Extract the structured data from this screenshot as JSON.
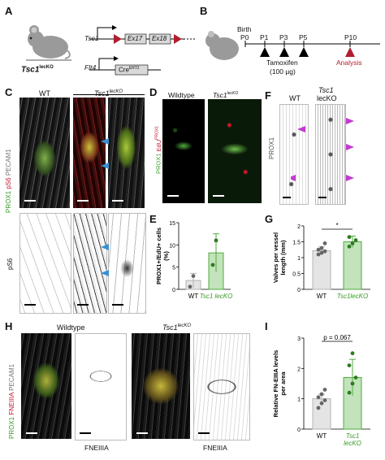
{
  "panels": {
    "A": {
      "label": "A",
      "mouse_label": "Tsc1",
      "mouse_sup": "lecKO",
      "gene1": "Tsc1",
      "ex1": "Ex17",
      "ex2": "Ex18",
      "gene2": "Flt4",
      "cre": "Cre",
      "cre_sup": "ERT2"
    },
    "B": {
      "label": "B",
      "birth": "Birth",
      "ticks": [
        "P0",
        "P1",
        "P3",
        "P5",
        "P10"
      ],
      "drug": "Tamoxifen",
      "dose": "(100 µg)",
      "analysis": "Analysis"
    },
    "C": {
      "label": "C",
      "wt": "WT",
      "ko": "Tsc1",
      "ko_sup": "lecKO",
      "stain_green": "PROX1",
      "stain_red": "pS6",
      "stain_white": "PECAM1",
      "bottom_stain": "pS6"
    },
    "D": {
      "label": "D",
      "wt": "Wildtype",
      "ko": "Tsc1",
      "ko_sup": "lecKO",
      "stain_green": "PROX1",
      "stain_red": "EdU",
      "stain_red_sup": "PROX1"
    },
    "E": {
      "label": "E"
    },
    "F": {
      "label": "F",
      "wt": "WT",
      "ko_line1": "Tsc1",
      "ko_line2": "lecKO",
      "stain": "PROX1"
    },
    "G": {
      "label": "G"
    },
    "H": {
      "label": "H",
      "wt": "Wildtype",
      "ko": "Tsc1",
      "ko_sup": "lecKO",
      "stain_green": "PROX1",
      "stain_red": "FNEIIIA",
      "stain_white": "PECAM1",
      "bottom_wt": "FNEIIIA",
      "bottom_ko": "FNEIIIA"
    },
    "I": {
      "label": "I"
    }
  },
  "chart_data": [
    {
      "id": "E",
      "type": "bar",
      "ylabel": "PROX1+/EdU+ cells (%)",
      "ylim": [
        0,
        15
      ],
      "yticks": [
        0,
        5,
        10,
        15
      ],
      "categories": [
        "WT",
        "Tsc1 lecKO"
      ],
      "category_sup": [
        "",
        ""
      ],
      "values": [
        2.0,
        8.2
      ],
      "errors": [
        1.6,
        4.3
      ],
      "points": [
        [
          0.6,
          3.0
        ],
        [
          5.5,
          11.0
        ]
      ],
      "colors": [
        "#b3b3b3",
        "#4fae3c"
      ]
    },
    {
      "id": "G",
      "type": "bar",
      "ylabel": "Valves per vessel length (mm)",
      "ylim": [
        0,
        2.0
      ],
      "yticks": [
        0,
        0.5,
        1.0,
        1.5,
        2.0
      ],
      "categories": [
        "WT",
        "Tsc1lecKO"
      ],
      "values": [
        1.22,
        1.5
      ],
      "errors": [
        0.12,
        0.18
      ],
      "points": [
        [
          1.1,
          1.15,
          1.2,
          1.25,
          1.3,
          1.45
        ],
        [
          1.35,
          1.45,
          1.55,
          1.65
        ]
      ],
      "significance": "*",
      "colors": [
        "#b3b3b3",
        "#4fae3c"
      ]
    },
    {
      "id": "I",
      "type": "bar",
      "ylabel": "Relative FN-EIIIA levels per area",
      "ylim": [
        0,
        3
      ],
      "yticks": [
        0,
        1,
        2,
        3
      ],
      "categories": [
        "WT",
        "Tsc1 lecKO"
      ],
      "values": [
        1.0,
        1.7
      ],
      "errors": [
        0.15,
        0.6
      ],
      "points": [
        [
          0.7,
          0.85,
          0.95,
          1.05,
          1.15,
          1.3
        ],
        [
          1.2,
          1.5,
          1.7,
          2.1,
          2.5
        ]
      ],
      "significance": "p = 0.067",
      "colors": [
        "#b3b3b3",
        "#4fae3c"
      ]
    }
  ]
}
